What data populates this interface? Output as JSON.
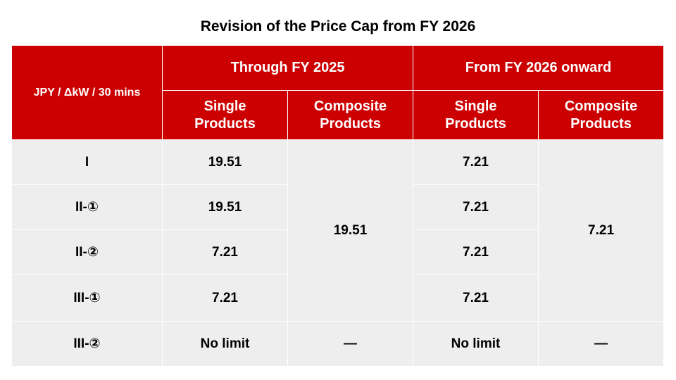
{
  "title": "Revision of the Price Cap from FY 2026",
  "table": {
    "corner": "JPY / ΔkW / 30 mins",
    "groups": [
      "Through FY 2025",
      "From FY 2026 onward"
    ],
    "subheaders": [
      "Single Products",
      "Composite Products"
    ],
    "row_labels": [
      "I",
      "II-①",
      "II-②",
      "III-①",
      "III-②"
    ],
    "through_fy2025": {
      "single": [
        19.51,
        19.51,
        7.21,
        7.21,
        "No limit"
      ],
      "composite": [
        19.51,
        "—"
      ]
    },
    "from_fy2026": {
      "single": [
        7.21,
        7.21,
        7.21,
        7.21,
        "No limit"
      ],
      "composite": [
        7.21,
        "—"
      ]
    }
  }
}
